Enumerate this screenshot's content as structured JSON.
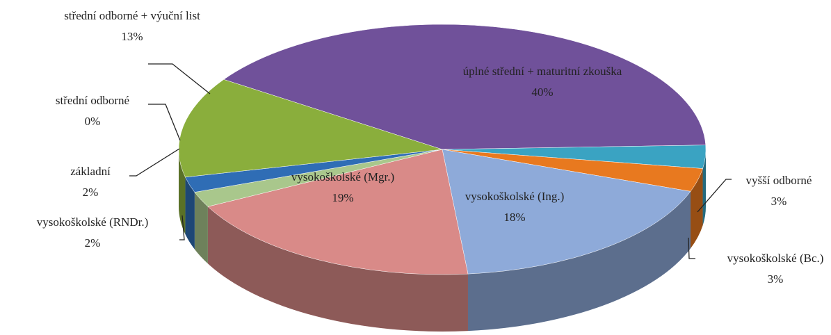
{
  "chart_data": {
    "type": "pie",
    "categories": [
      "úplné střední + maturitní zkouška",
      "vyšší odborné",
      "vysokoškolské (Bc.)",
      "vysokoškolské (Ing.)",
      "vysokoškolské (Mgr.)",
      "vysokoškolské (RNDr.)",
      "základní",
      "střední odborné",
      "střední odborné + výuční list"
    ],
    "values": [
      40,
      3,
      3,
      18,
      19,
      2,
      2,
      0,
      13
    ],
    "value_labels": [
      "40%",
      "3%",
      "3%",
      "18%",
      "19%",
      "2%",
      "2%",
      "0%",
      "13%"
    ],
    "colors": [
      "#70519a",
      "#3aa3c2",
      "#e8791f",
      "#8eaad9",
      "#d98a88",
      "#a9c78c",
      "#2f6db5",
      "#4bacc6",
      "#8aae3c"
    ]
  }
}
